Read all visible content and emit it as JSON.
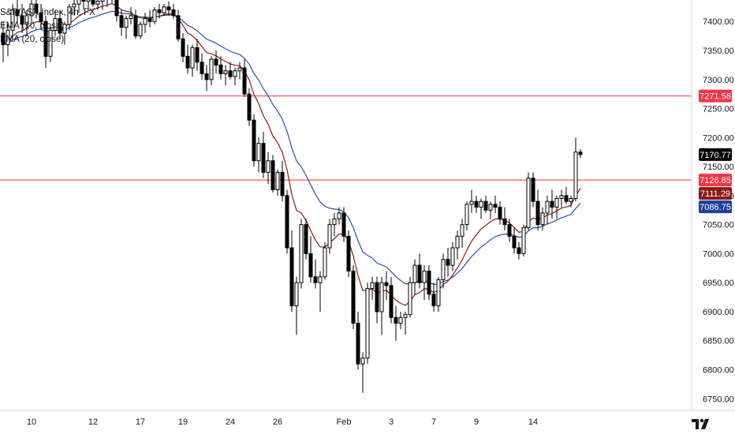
{
  "legend": {
    "symbol": "S&P/ASX Index, 4h, FX",
    "ema10": "EMA (10, close)",
    "ema20": "EMA (20, close)"
  },
  "colors": {
    "up_body": "#ffffff",
    "down_body": "#000000",
    "wick": "#000000",
    "ema10": "#8b1a1a",
    "ema20": "#2f4fa8",
    "hline": "#e53935",
    "tag_hline": "#f23645",
    "tag_last": "#000000",
    "tag_ema10": "#8b1a1a",
    "tag_ema20": "#1e3fa0",
    "axis_text": "#131722",
    "axis_line": "#d1d4dc"
  },
  "chart_data": {
    "type": "candlestick",
    "y_ticks": [
      "7400.00",
      "7350.00",
      "7300.00",
      "7250.00",
      "7200.00",
      "7150.00",
      "7100.00",
      "7050.00",
      "7000.00",
      "6950.00",
      "6900.00",
      "6850.00",
      "6800.00",
      "6750.00"
    ],
    "y_tick_values": [
      7400,
      7350,
      7300,
      7250,
      7200,
      7150,
      7100,
      7050,
      7000,
      6950,
      6900,
      6850,
      6800,
      6750
    ],
    "ylim": [
      6730,
      7437
    ],
    "x_ticks": [
      "10",
      "12",
      "17",
      "19",
      "24",
      "26",
      "Feb",
      "3",
      "7",
      "9",
      "14"
    ],
    "x_tick_bar_index": [
      6,
      19,
      29,
      38,
      48,
      58,
      72,
      82,
      91,
      100,
      112
    ],
    "horizontal_lines": [
      7271.58,
      7126.85
    ],
    "price_tags": [
      {
        "label": "7271.58",
        "value": 7271.58,
        "kind": "hline"
      },
      {
        "label": "7170.77",
        "value": 7170.77,
        "kind": "last"
      },
      {
        "label": "7126.85",
        "value": 7126.85,
        "kind": "hline"
      },
      {
        "label": "7111.29",
        "value": 7111.29,
        "kind": "ema10"
      },
      {
        "label": "7086.75",
        "value": 7086.75,
        "kind": "ema20"
      }
    ],
    "candles": [
      [
        7380,
        7400,
        7330,
        7360
      ],
      [
        7360,
        7395,
        7340,
        7385
      ],
      [
        7385,
        7430,
        7370,
        7420
      ],
      [
        7420,
        7440,
        7395,
        7410
      ],
      [
        7410,
        7430,
        7380,
        7395
      ],
      [
        7395,
        7420,
        7375,
        7410
      ],
      [
        7410,
        7440,
        7400,
        7430
      ],
      [
        7430,
        7440,
        7405,
        7415
      ],
      [
        7415,
        7430,
        7385,
        7400
      ],
      [
        7400,
        7410,
        7320,
        7340
      ],
      [
        7340,
        7390,
        7330,
        7385
      ],
      [
        7385,
        7420,
        7375,
        7405
      ],
      [
        7405,
        7420,
        7370,
        7380
      ],
      [
        7380,
        7400,
        7360,
        7395
      ],
      [
        7395,
        7430,
        7385,
        7425
      ],
      [
        7425,
        7440,
        7410,
        7430
      ],
      [
        7430,
        7445,
        7415,
        7440
      ],
      [
        7440,
        7450,
        7420,
        7435
      ],
      [
        7435,
        7445,
        7420,
        7440
      ],
      [
        7440,
        7450,
        7425,
        7430
      ],
      [
        7430,
        7445,
        7420,
        7435
      ],
      [
        7435,
        7445,
        7420,
        7438
      ],
      [
        7438,
        7445,
        7425,
        7440
      ],
      [
        7440,
        7450,
        7430,
        7440
      ],
      [
        7440,
        7445,
        7400,
        7410
      ],
      [
        7410,
        7420,
        7375,
        7390
      ],
      [
        7390,
        7410,
        7370,
        7405
      ],
      [
        7405,
        7425,
        7395,
        7410
      ],
      [
        7410,
        7420,
        7370,
        7375
      ],
      [
        7375,
        7400,
        7370,
        7395
      ],
      [
        7395,
        7415,
        7380,
        7405
      ],
      [
        7405,
        7420,
        7390,
        7400
      ],
      [
        7400,
        7425,
        7395,
        7420
      ],
      [
        7420,
        7430,
        7405,
        7415
      ],
      [
        7415,
        7430,
        7410,
        7425
      ],
      [
        7425,
        7435,
        7410,
        7420
      ],
      [
        7420,
        7430,
        7405,
        7410
      ],
      [
        7410,
        7420,
        7365,
        7370
      ],
      [
        7370,
        7380,
        7330,
        7340
      ],
      [
        7340,
        7360,
        7310,
        7320
      ],
      [
        7320,
        7360,
        7305,
        7355
      ],
      [
        7355,
        7370,
        7315,
        7330
      ],
      [
        7330,
        7345,
        7300,
        7310
      ],
      [
        7310,
        7325,
        7280,
        7300
      ],
      [
        7300,
        7340,
        7290,
        7335
      ],
      [
        7335,
        7350,
        7310,
        7325
      ],
      [
        7325,
        7340,
        7300,
        7310
      ],
      [
        7310,
        7325,
        7290,
        7315
      ],
      [
        7315,
        7330,
        7300,
        7305
      ],
      [
        7305,
        7320,
        7290,
        7315
      ],
      [
        7315,
        7330,
        7300,
        7320
      ],
      [
        7320,
        7335,
        7270,
        7275
      ],
      [
        7275,
        7285,
        7220,
        7230
      ],
      [
        7230,
        7240,
        7150,
        7160
      ],
      [
        7160,
        7200,
        7140,
        7190
      ],
      [
        7190,
        7210,
        7130,
        7140
      ],
      [
        7140,
        7175,
        7120,
        7160
      ],
      [
        7160,
        7170,
        7105,
        7110
      ],
      [
        7110,
        7145,
        7100,
        7140
      ],
      [
        7140,
        7160,
        7090,
        7100
      ],
      [
        7100,
        7110,
        7000,
        7010
      ],
      [
        7010,
        7040,
        6900,
        6910
      ],
      [
        6910,
        6960,
        6860,
        6950
      ],
      [
        6950,
        7060,
        6940,
        7050
      ],
      [
        7050,
        7060,
        6990,
        7000
      ],
      [
        7000,
        7030,
        6950,
        6960
      ],
      [
        6960,
        6990,
        6940,
        6950
      ],
      [
        6950,
        6970,
        6900,
        6960
      ],
      [
        6960,
        7020,
        6955,
        7010
      ],
      [
        7010,
        7060,
        7000,
        7050
      ],
      [
        7050,
        7070,
        7030,
        7060
      ],
      [
        7060,
        7080,
        7050,
        7070
      ],
      [
        7070,
        7080,
        7020,
        7030
      ],
      [
        7030,
        7040,
        6960,
        6970
      ],
      [
        6970,
        6980,
        6870,
        6880
      ],
      [
        6880,
        6900,
        6800,
        6810
      ],
      [
        6810,
        6830,
        6760,
        6820
      ],
      [
        6820,
        6950,
        6810,
        6940
      ],
      [
        6940,
        6960,
        6920,
        6950
      ],
      [
        6950,
        6960,
        6880,
        6900
      ],
      [
        6900,
        6960,
        6860,
        6950
      ],
      [
        6950,
        6970,
        6920,
        6945
      ],
      [
        6945,
        6960,
        6880,
        6890
      ],
      [
        6890,
        6910,
        6850,
        6880
      ],
      [
        6880,
        6900,
        6870,
        6890
      ],
      [
        6890,
        6900,
        6860,
        6895
      ],
      [
        6895,
        6960,
        6890,
        6950
      ],
      [
        6950,
        6990,
        6930,
        6980
      ],
      [
        6980,
        7000,
        6940,
        6950
      ],
      [
        6950,
        6980,
        6920,
        6970
      ],
      [
        6970,
        6980,
        6920,
        6930
      ],
      [
        6930,
        6950,
        6900,
        6910
      ],
      [
        6910,
        6960,
        6900,
        6955
      ],
      [
        6955,
        7000,
        6940,
        6990
      ],
      [
        6990,
        7010,
        6960,
        6980
      ],
      [
        6980,
        7020,
        6970,
        7010
      ],
      [
        7010,
        7040,
        6990,
        7030
      ],
      [
        7030,
        7060,
        7010,
        7050
      ],
      [
        7050,
        7090,
        7040,
        7085
      ],
      [
        7085,
        7110,
        7070,
        7090
      ],
      [
        7090,
        7100,
        7070,
        7080
      ],
      [
        7080,
        7095,
        7060,
        7090
      ],
      [
        7090,
        7100,
        7070,
        7075
      ],
      [
        7075,
        7090,
        7060,
        7085
      ],
      [
        7085,
        7100,
        7070,
        7080
      ],
      [
        7080,
        7090,
        7050,
        7060
      ],
      [
        7060,
        7080,
        7040,
        7050
      ],
      [
        7050,
        7060,
        7020,
        7030
      ],
      [
        7030,
        7045,
        7000,
        7010
      ],
      [
        7010,
        7020,
        6990,
        7000
      ],
      [
        7000,
        7050,
        6995,
        7045
      ],
      [
        7045,
        7140,
        7040,
        7130
      ],
      [
        7130,
        7140,
        7080,
        7090
      ],
      [
        7090,
        7110,
        7040,
        7050
      ],
      [
        7050,
        7080,
        7040,
        7070
      ],
      [
        7070,
        7100,
        7050,
        7090
      ],
      [
        7090,
        7110,
        7060,
        7080
      ],
      [
        7080,
        7100,
        7060,
        7095
      ],
      [
        7095,
        7110,
        7080,
        7100
      ],
      [
        7100,
        7115,
        7085,
        7090
      ],
      [
        7090,
        7100,
        7080,
        7095
      ],
      [
        7095,
        7200,
        7090,
        7175
      ],
      [
        7175,
        7180,
        7165,
        7170.77
      ]
    ]
  }
}
